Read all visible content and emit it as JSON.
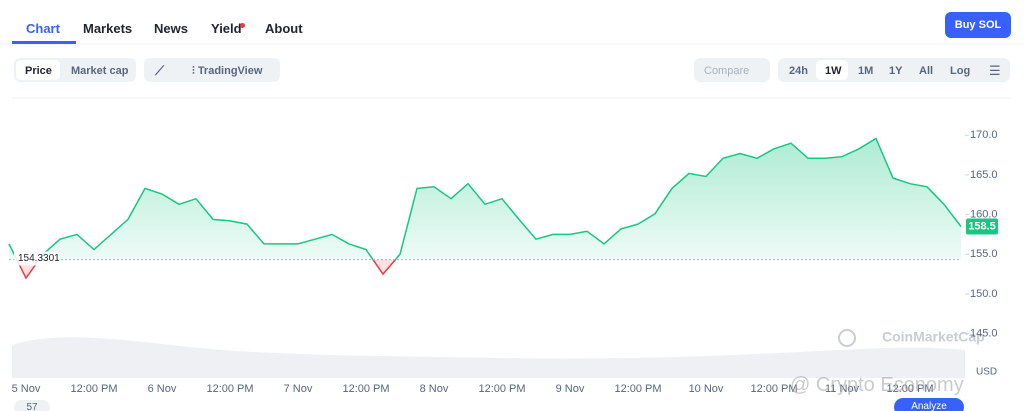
{
  "nav": {
    "tabs": [
      "Chart",
      "Markets",
      "News",
      "Yield",
      "About"
    ],
    "button": "Buy SOL"
  },
  "toolbar": {
    "toggle": [
      "Price",
      "Market cap"
    ],
    "tradingview": "TradingView",
    "compare": "Compare",
    "ranges": [
      "24h",
      "1W",
      "1M",
      "1Y",
      "All"
    ],
    "log": "Log"
  },
  "watermark": "CoinMarketCap",
  "overlay": {
    "badge": "57",
    "analyze": "Analyze",
    "credit": "@ Crypto Economy"
  },
  "chart_data": {
    "type": "line",
    "y_unit": "USD",
    "categories": [
      null,
      "5 Nov",
      null,
      null,
      null,
      "12:00 PM",
      null,
      null,
      null,
      "6 Nov",
      null,
      null,
      null,
      "12:00 PM",
      null,
      null,
      null,
      "7 Nov",
      null,
      null,
      null,
      "12:00 PM",
      null,
      null,
      null,
      "8 Nov",
      null,
      null,
      null,
      "12:00 PM",
      null,
      null,
      null,
      "9 Nov",
      null,
      null,
      null,
      "12:00 PM",
      null,
      null,
      null,
      "10 Nov",
      null,
      null,
      null,
      "12:00 PM",
      null,
      null,
      null,
      "11 Nov",
      null,
      null,
      null,
      "12:00 PM",
      null,
      null,
      null
    ],
    "series": [
      {
        "name": "SOL",
        "color": "#16c784",
        "below_color": "#ea3943",
        "values": [
          156.3,
          152,
          155,
          156.9,
          157.5,
          155.6,
          157.5,
          159.4,
          163.3,
          162.6,
          161.3,
          162,
          159.4,
          159.2,
          158.8,
          156.3,
          156.3,
          156.3,
          156.9,
          157.5,
          156.3,
          155.6,
          152.5,
          155,
          163.3,
          163.5,
          162,
          163.9,
          161.3,
          162,
          159.4,
          156.9,
          157.5,
          157.5,
          157.9,
          156.3,
          158.2,
          158.8,
          160.1,
          163.3,
          165.2,
          164.8,
          167.1,
          167.7,
          167.1,
          168.3,
          169,
          167.1,
          167.1,
          167.3,
          168.3,
          169.6,
          164.6,
          163.9,
          163.5,
          161.3,
          158.5
        ]
      }
    ],
    "baseline": 154.3301,
    "ylim": [
      139.4,
      174.7
    ],
    "yticks": [
      {
        "value": 145,
        "label": "145.0"
      },
      {
        "value": 150,
        "label": "150.0"
      },
      {
        "value": 155,
        "label": "155.0"
      },
      {
        "value": 160,
        "label": "160.0"
      },
      {
        "value": 165,
        "label": "165.0"
      },
      {
        "value": 170,
        "label": "170.0"
      }
    ],
    "grid": false
  }
}
